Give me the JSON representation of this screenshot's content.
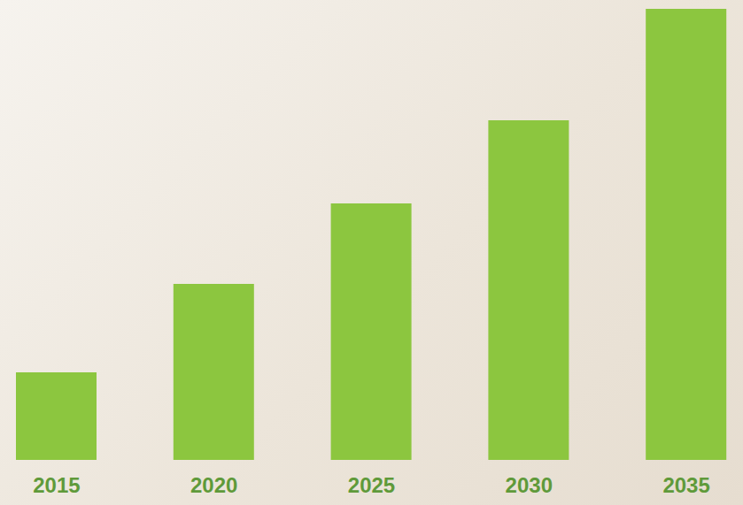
{
  "chart_data": {
    "type": "bar",
    "categories": [
      "2015",
      "2020",
      "2025",
      "2030",
      "2035"
    ],
    "values": [
      99,
      199,
      290,
      384,
      510
    ],
    "color": "#8cc63f",
    "ylim": [
      0,
      510
    ],
    "grid": false,
    "tick_labels": "x"
  }
}
